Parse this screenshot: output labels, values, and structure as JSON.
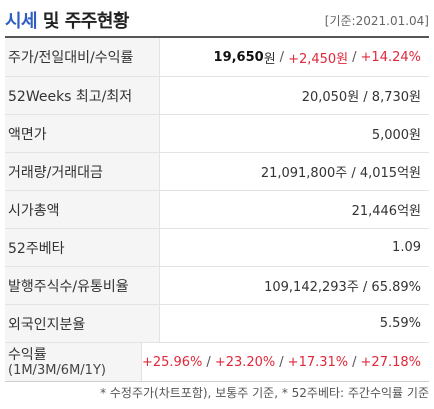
{
  "header": {
    "title_accent": "시세",
    "title_rest": "및 주주현황",
    "date": "[기준:2021.01.04]"
  },
  "rows": [
    {
      "label": "주가/전일대비/수익률",
      "price": "19,650",
      "price_unit": "원",
      "change": "+2,450원",
      "change_rate": "+14.24%"
    },
    {
      "label": "52Weeks 최고/최저",
      "value": "20,050원 / 8,730원"
    },
    {
      "label": "액면가",
      "value": "5,000원"
    },
    {
      "label": "거래량/거래대금",
      "value": "21,091,800주 / 4,015억원"
    },
    {
      "label": "시가총액",
      "value": "21,446억원"
    },
    {
      "label": "52주베타",
      "value": "1.09"
    },
    {
      "label": "발행주식수/유통비율",
      "value": "109,142,293주 / 65.89%"
    },
    {
      "label": "외국인지분율",
      "value": "5.59%"
    },
    {
      "label": "수익률",
      "label_sub": "(1M/3M/6M/1Y)",
      "returns": [
        "+25.96%",
        "+23.20%",
        "+17.31%",
        "+27.18%"
      ]
    }
  ],
  "footnote": "* 수정주가(차트포함), 보통주 기준, * 52주베타: 주간수익률 기준",
  "colors": {
    "accent": "#2f5ec2",
    "up": "#e0283a"
  }
}
